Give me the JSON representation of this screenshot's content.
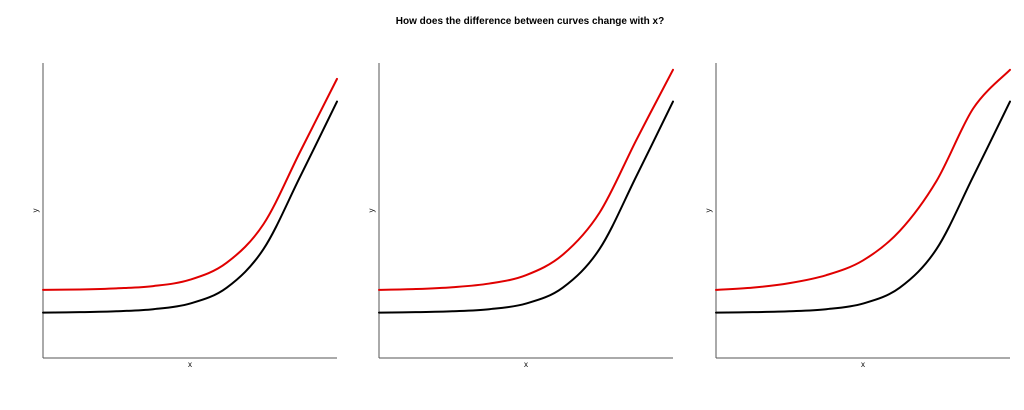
{
  "title": "How does the difference between curves change with x?",
  "colors": {
    "baseline": "#000000",
    "shifted": "#e00000",
    "axis": "#555555"
  },
  "chart_data": [
    {
      "type": "line",
      "xlabel": "x",
      "ylabel": "y",
      "xlim": [
        0,
        4
      ],
      "ylim": [
        0,
        13
      ],
      "grid": false,
      "series": [
        {
          "values": [
            [
              0,
              2.0
            ],
            [
              0.5,
              2.02
            ],
            [
              1,
              2.06
            ],
            [
              1.5,
              2.15
            ],
            [
              2,
              2.4
            ],
            [
              2.5,
              3.1
            ],
            [
              3,
              4.8
            ],
            [
              3.5,
              8.0
            ],
            [
              4,
              11.3
            ]
          ],
          "color_key": "baseline"
        },
        {
          "values": [
            [
              0,
              3.0
            ],
            [
              0.5,
              3.02
            ],
            [
              1,
              3.07
            ],
            [
              1.5,
              3.17
            ],
            [
              2,
              3.45
            ],
            [
              2.5,
              4.2
            ],
            [
              3,
              5.9
            ],
            [
              3.5,
              9.1
            ],
            [
              4,
              12.3
            ]
          ],
          "color_key": "shifted"
        }
      ]
    },
    {
      "type": "line",
      "xlabel": "x",
      "ylabel": "y",
      "xlim": [
        0,
        4
      ],
      "ylim": [
        0,
        13
      ],
      "grid": false,
      "series": [
        {
          "values": [
            [
              0,
              2.0
            ],
            [
              0.5,
              2.02
            ],
            [
              1,
              2.06
            ],
            [
              1.5,
              2.15
            ],
            [
              2,
              2.4
            ],
            [
              2.5,
              3.1
            ],
            [
              3,
              4.8
            ],
            [
              3.5,
              8.0
            ],
            [
              4,
              11.3
            ]
          ],
          "color_key": "baseline"
        },
        {
          "values": [
            [
              0,
              3.0
            ],
            [
              0.5,
              3.04
            ],
            [
              1,
              3.12
            ],
            [
              1.5,
              3.28
            ],
            [
              2,
              3.65
            ],
            [
              2.5,
              4.55
            ],
            [
              3,
              6.4
            ],
            [
              3.5,
              9.6
            ],
            [
              4,
              12.7
            ]
          ],
          "color_key": "shifted"
        }
      ]
    },
    {
      "type": "line",
      "xlabel": "x",
      "ylabel": "y",
      "xlim": [
        0,
        4
      ],
      "ylim": [
        0,
        13
      ],
      "grid": false,
      "series": [
        {
          "values": [
            [
              0,
              2.0
            ],
            [
              0.5,
              2.02
            ],
            [
              1,
              2.06
            ],
            [
              1.5,
              2.15
            ],
            [
              2,
              2.4
            ],
            [
              2.5,
              3.1
            ],
            [
              3,
              4.8
            ],
            [
              3.5,
              8.0
            ],
            [
              4,
              11.3
            ]
          ],
          "color_key": "baseline"
        },
        {
          "values": [
            [
              0,
              3.0
            ],
            [
              0.5,
              3.1
            ],
            [
              1,
              3.3
            ],
            [
              1.5,
              3.65
            ],
            [
              2,
              4.3
            ],
            [
              2.5,
              5.6
            ],
            [
              3,
              7.8
            ],
            [
              3.5,
              11.0
            ],
            [
              4,
              12.7
            ]
          ],
          "color_key": "shifted"
        }
      ]
    }
  ]
}
